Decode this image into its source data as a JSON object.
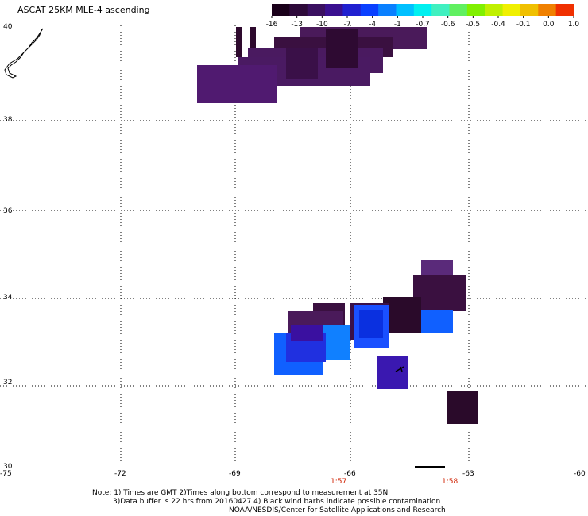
{
  "title": "ASCAT 25KM MLE-4 ascending",
  "colorbar": {
    "colors": [
      "#1a001a",
      "#2e0a3a",
      "#3a1060",
      "#3a1090",
      "#2020d0",
      "#0a40ff",
      "#0a80ff",
      "#00c0ff",
      "#00f0f0",
      "#40f0c0",
      "#60f060",
      "#80f000",
      "#c0f000",
      "#f0f000",
      "#f0c000",
      "#f08000",
      "#f03000"
    ],
    "ticks": [
      "-16",
      "-13",
      "-10",
      "-7",
      "-4",
      "-1",
      "-0.7",
      "-0.6",
      "-0.5",
      "-0.4",
      "-0.1",
      "0.0",
      "1.0"
    ]
  },
  "axes": {
    "lat_labels": [
      "40",
      "38",
      "36",
      "34",
      "32",
      "30"
    ],
    "lon_labels": [
      "-75",
      "-72",
      "-69",
      "-66",
      "-63",
      "-60"
    ],
    "time_labels": [
      "1:57",
      "1:58"
    ]
  },
  "notes": [
    "Note: 1) Times are GMT 2)Times along bottom correspond to measurement at 35N",
    "3)Data buffer is 22 hrs from 20160427 4) Black wind barbs indicate possible contamination",
    "NOAA/NESDIS/Center for Satellite Applications and Research"
  ]
}
